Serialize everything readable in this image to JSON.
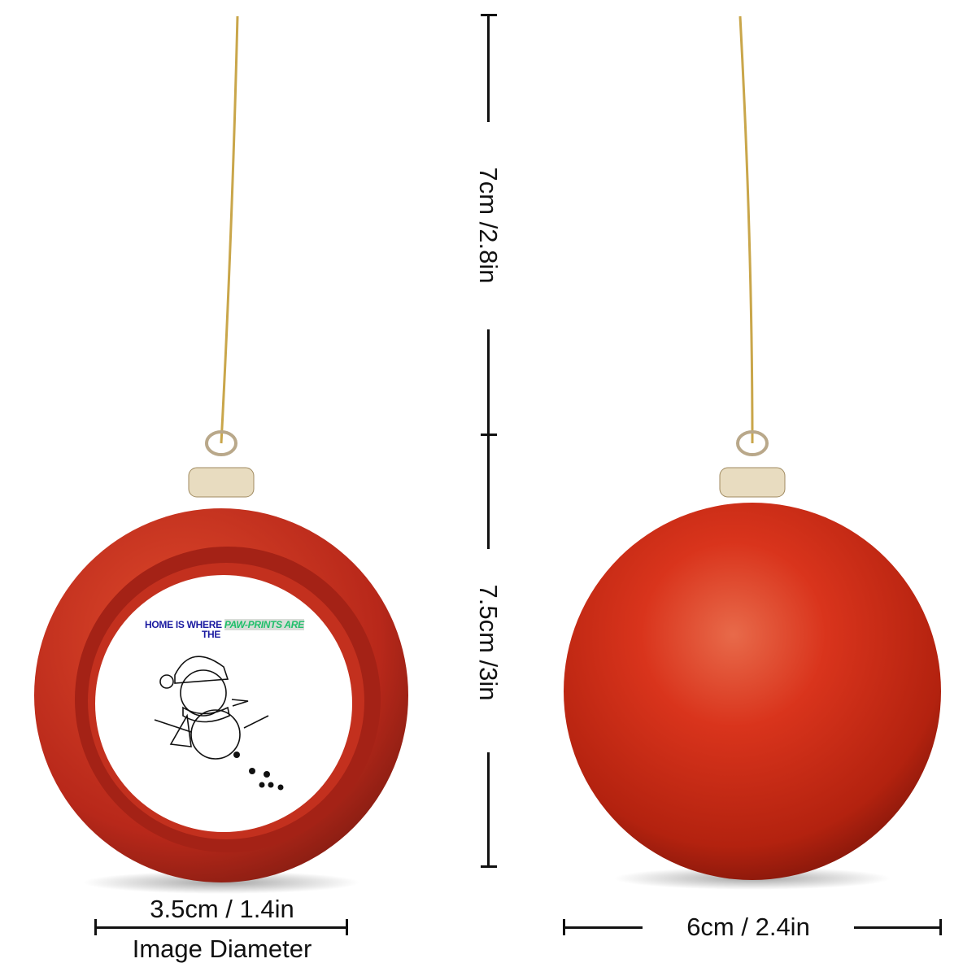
{
  "dimensions": {
    "hanging_length": "7cm /2.8in",
    "ball_height": "7.5cm /3in",
    "image_diameter_value": "3.5cm / 1.4in",
    "image_diameter_label": "Image Diameter",
    "ball_diameter": "6cm / 2.4in"
  },
  "ornament_image": {
    "line1_blue": "HOME IS WHERE",
    "line1_green": "PAW-PRINTS ARE",
    "line2_blue": "THE"
  },
  "colors": {
    "ornament_red": "#c8281a",
    "string_gold": "#c9a64a",
    "text_blue": "#1a1aa0",
    "text_green": "#1fbf6a"
  }
}
